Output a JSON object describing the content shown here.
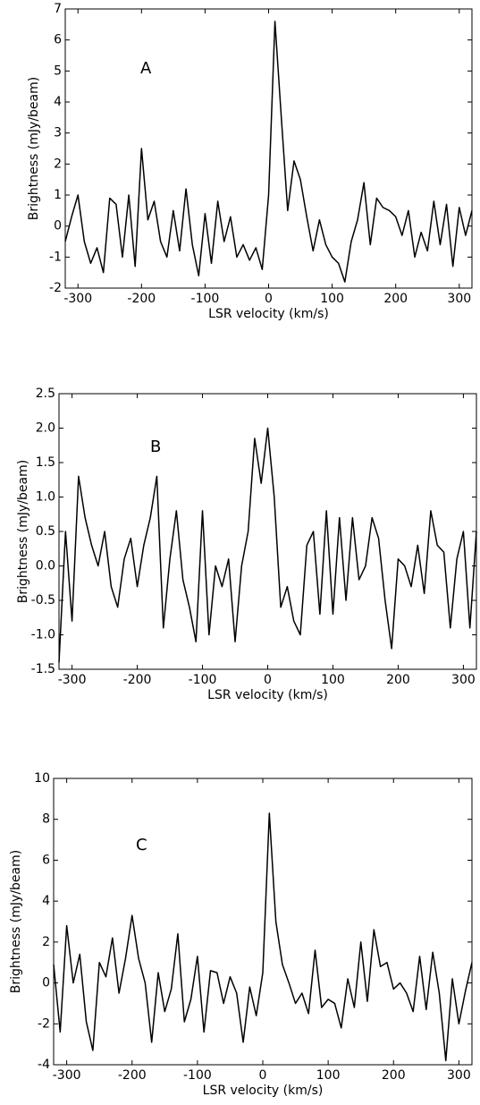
{
  "chart_data": [
    {
      "type": "line",
      "annotation": "A",
      "x_label": "LSR velocity (km/s)",
      "y_label": "Brightness (mJy/beam)",
      "color": "#000000",
      "x": [
        -320,
        -310,
        -300,
        -290,
        -280,
        -270,
        -260,
        -250,
        -240,
        -230,
        -220,
        -210,
        -200,
        -190,
        -180,
        -170,
        -160,
        -150,
        -140,
        -130,
        -120,
        -110,
        -100,
        -90,
        -80,
        -70,
        -60,
        -50,
        -40,
        -30,
        -20,
        -10,
        0,
        10,
        20,
        30,
        40,
        50,
        60,
        70,
        80,
        90,
        100,
        110,
        120,
        130,
        140,
        150,
        160,
        170,
        180,
        190,
        200,
        210,
        220,
        230,
        240,
        250,
        260,
        270,
        280,
        290,
        300,
        310,
        320
      ],
      "values": [
        -0.5,
        0.3,
        1.0,
        -0.5,
        -1.2,
        -0.7,
        -1.5,
        0.9,
        0.7,
        -1.0,
        1.0,
        -1.3,
        2.5,
        0.2,
        0.8,
        -0.5,
        -1.0,
        0.5,
        -0.8,
        1.2,
        -0.6,
        -1.6,
        0.4,
        -1.2,
        0.8,
        -0.5,
        0.3,
        -1.0,
        -0.6,
        -1.1,
        -0.7,
        -1.4,
        1.0,
        6.6,
        3.5,
        0.5,
        2.1,
        1.5,
        0.3,
        -0.8,
        0.2,
        -0.6,
        -1.0,
        -1.2,
        -1.8,
        -0.5,
        0.2,
        1.4,
        -0.6,
        0.9,
        0.6,
        0.5,
        0.3,
        -0.3,
        0.5,
        -1.0,
        -0.2,
        -0.8,
        0.8,
        -0.6,
        0.7,
        -1.3,
        0.6,
        -0.3,
        0.5
      ],
      "xlim": [
        -320,
        320
      ],
      "xticks": [
        -300,
        -200,
        -100,
        0,
        100,
        200,
        300
      ],
      "ylim": [
        -2,
        7
      ],
      "yticks": [
        -2,
        -1,
        0,
        1,
        2,
        3,
        4,
        5,
        6,
        7
      ]
    },
    {
      "type": "line",
      "annotation": "B",
      "x_label": "LSR velocity (km/s)",
      "y_label": "Brightness (mJy/beam)",
      "color": "#000000",
      "x": [
        -320,
        -310,
        -300,
        -290,
        -280,
        -270,
        -260,
        -250,
        -240,
        -230,
        -220,
        -210,
        -200,
        -190,
        -180,
        -170,
        -160,
        -150,
        -140,
        -130,
        -120,
        -110,
        -100,
        -90,
        -80,
        -70,
        -60,
        -50,
        -40,
        -30,
        -20,
        -10,
        0,
        10,
        20,
        30,
        40,
        50,
        60,
        70,
        80,
        90,
        100,
        110,
        120,
        130,
        140,
        150,
        160,
        170,
        180,
        190,
        200,
        210,
        220,
        230,
        240,
        250,
        260,
        270,
        280,
        290,
        300,
        310,
        320
      ],
      "values": [
        -1.4,
        0.5,
        -0.8,
        1.3,
        0.7,
        0.3,
        0.0,
        0.5,
        -0.3,
        -0.6,
        0.1,
        0.4,
        -0.3,
        0.3,
        0.7,
        1.3,
        -0.9,
        0.1,
        0.8,
        -0.2,
        -0.6,
        -1.1,
        0.8,
        -1.0,
        0.0,
        -0.3,
        0.1,
        -1.1,
        0.0,
        0.5,
        1.85,
        1.2,
        2.0,
        1.0,
        -0.6,
        -0.3,
        -0.8,
        -1.0,
        0.3,
        0.5,
        -0.7,
        0.8,
        -0.7,
        0.7,
        -0.5,
        0.7,
        -0.2,
        0.0,
        0.7,
        0.4,
        -0.5,
        -1.2,
        0.1,
        0.0,
        -0.3,
        0.3,
        -0.4,
        0.8,
        0.3,
        0.2,
        -0.9,
        0.1,
        0.5,
        -0.9,
        0.5
      ],
      "xlim": [
        -320,
        320
      ],
      "xticks": [
        -300,
        -200,
        -100,
        0,
        100,
        200,
        300
      ],
      "ylim": [
        -1.5,
        2.5
      ],
      "yticks": [
        -1.5,
        {
          "value": -1,
          "label": "-1.0"
        },
        -0.5,
        {
          "value": 0,
          "label": "0.0"
        },
        0.5,
        {
          "value": 1,
          "label": "1.0"
        },
        1.5,
        {
          "value": 2,
          "label": "2.0"
        },
        2.5
      ]
    },
    {
      "type": "line",
      "annotation": "C",
      "x_label": "LSR velocity (km/s)",
      "y_label": "Brightness (mJy/beam)",
      "color": "#000000",
      "x": [
        -320,
        -310,
        -300,
        -290,
        -280,
        -270,
        -260,
        -250,
        -240,
        -230,
        -220,
        -210,
        -200,
        -190,
        -180,
        -170,
        -160,
        -150,
        -140,
        -130,
        -120,
        -110,
        -100,
        -90,
        -80,
        -70,
        -60,
        -50,
        -40,
        -30,
        -20,
        -10,
        0,
        10,
        20,
        30,
        40,
        50,
        60,
        70,
        80,
        90,
        100,
        110,
        120,
        130,
        140,
        150,
        160,
        170,
        180,
        190,
        200,
        210,
        220,
        230,
        240,
        250,
        260,
        270,
        280,
        290,
        300,
        310,
        320
      ],
      "values": [
        0.9,
        -2.4,
        2.8,
        0.0,
        1.4,
        -1.9,
        -3.3,
        1.0,
        0.3,
        2.2,
        -0.5,
        1.2,
        3.3,
        1.2,
        0.0,
        -2.9,
        0.5,
        -1.4,
        -0.3,
        2.4,
        -1.9,
        -0.8,
        1.3,
        -2.4,
        0.6,
        0.5,
        -1.0,
        0.3,
        -0.5,
        -2.9,
        -0.2,
        -1.6,
        0.5,
        8.3,
        3.0,
        0.9,
        0.0,
        -1.0,
        -0.5,
        -1.5,
        1.6,
        -1.2,
        -0.8,
        -1.0,
        -2.2,
        0.2,
        -1.2,
        2.0,
        -0.9,
        2.6,
        0.8,
        1.0,
        -0.3,
        0.0,
        -0.5,
        -1.4,
        1.3,
        -1.3,
        1.5,
        -0.5,
        -3.8,
        0.2,
        -2.0,
        -0.4,
        1.0
      ],
      "xlim": [
        -320,
        320
      ],
      "xticks": [
        -300,
        -200,
        -100,
        0,
        100,
        200,
        300
      ],
      "ylim": [
        -4,
        10
      ],
      "yticks": [
        -4,
        -2,
        0,
        2,
        4,
        6,
        8,
        10
      ]
    }
  ]
}
